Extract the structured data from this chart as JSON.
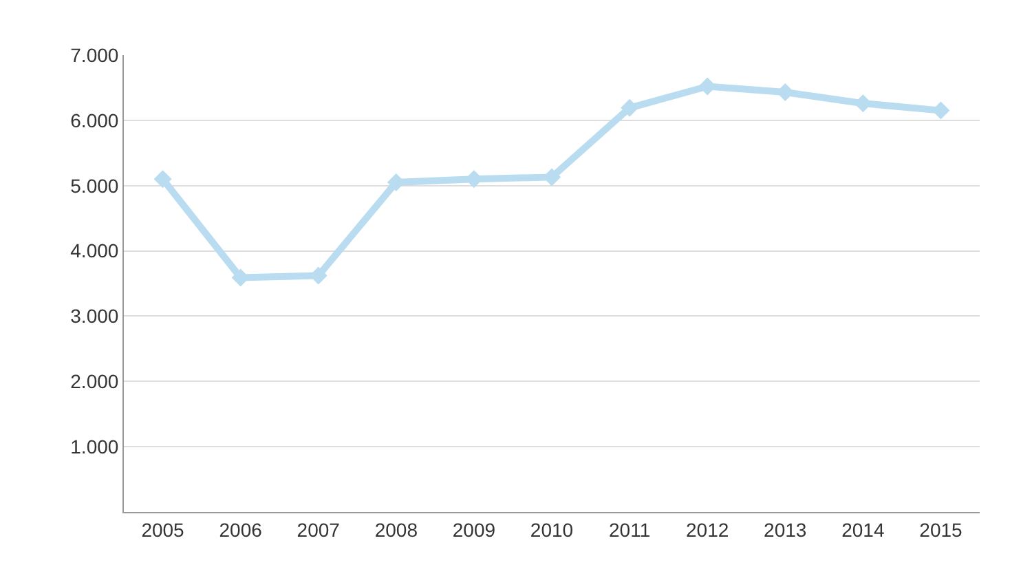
{
  "chart_data": {
    "type": "line",
    "categories": [
      "2005",
      "2006",
      "2007",
      "2008",
      "2009",
      "2010",
      "2011",
      "2012",
      "2013",
      "2014",
      "2015"
    ],
    "series": [
      {
        "color": "#b9dcf0",
        "values": [
          5100,
          3590,
          3620,
          5050,
          5100,
          5130,
          6190,
          6520,
          6430,
          6260,
          6150
        ]
      }
    ],
    "ylim": [
      0,
      7000
    ],
    "yticks": [
      {
        "value": 0,
        "label": null
      },
      {
        "value": 1000,
        "label": "1.000"
      },
      {
        "value": 2000,
        "label": "2.000"
      },
      {
        "value": 3000,
        "label": "3.000"
      },
      {
        "value": 4000,
        "label": "4.000"
      },
      {
        "value": 5000,
        "label": "5.000"
      },
      {
        "value": 6000,
        "label": "6.000"
      },
      {
        "value": 7000,
        "label": "7.000"
      }
    ],
    "grid": "y",
    "marker": "diamond",
    "line_style": "solid"
  }
}
